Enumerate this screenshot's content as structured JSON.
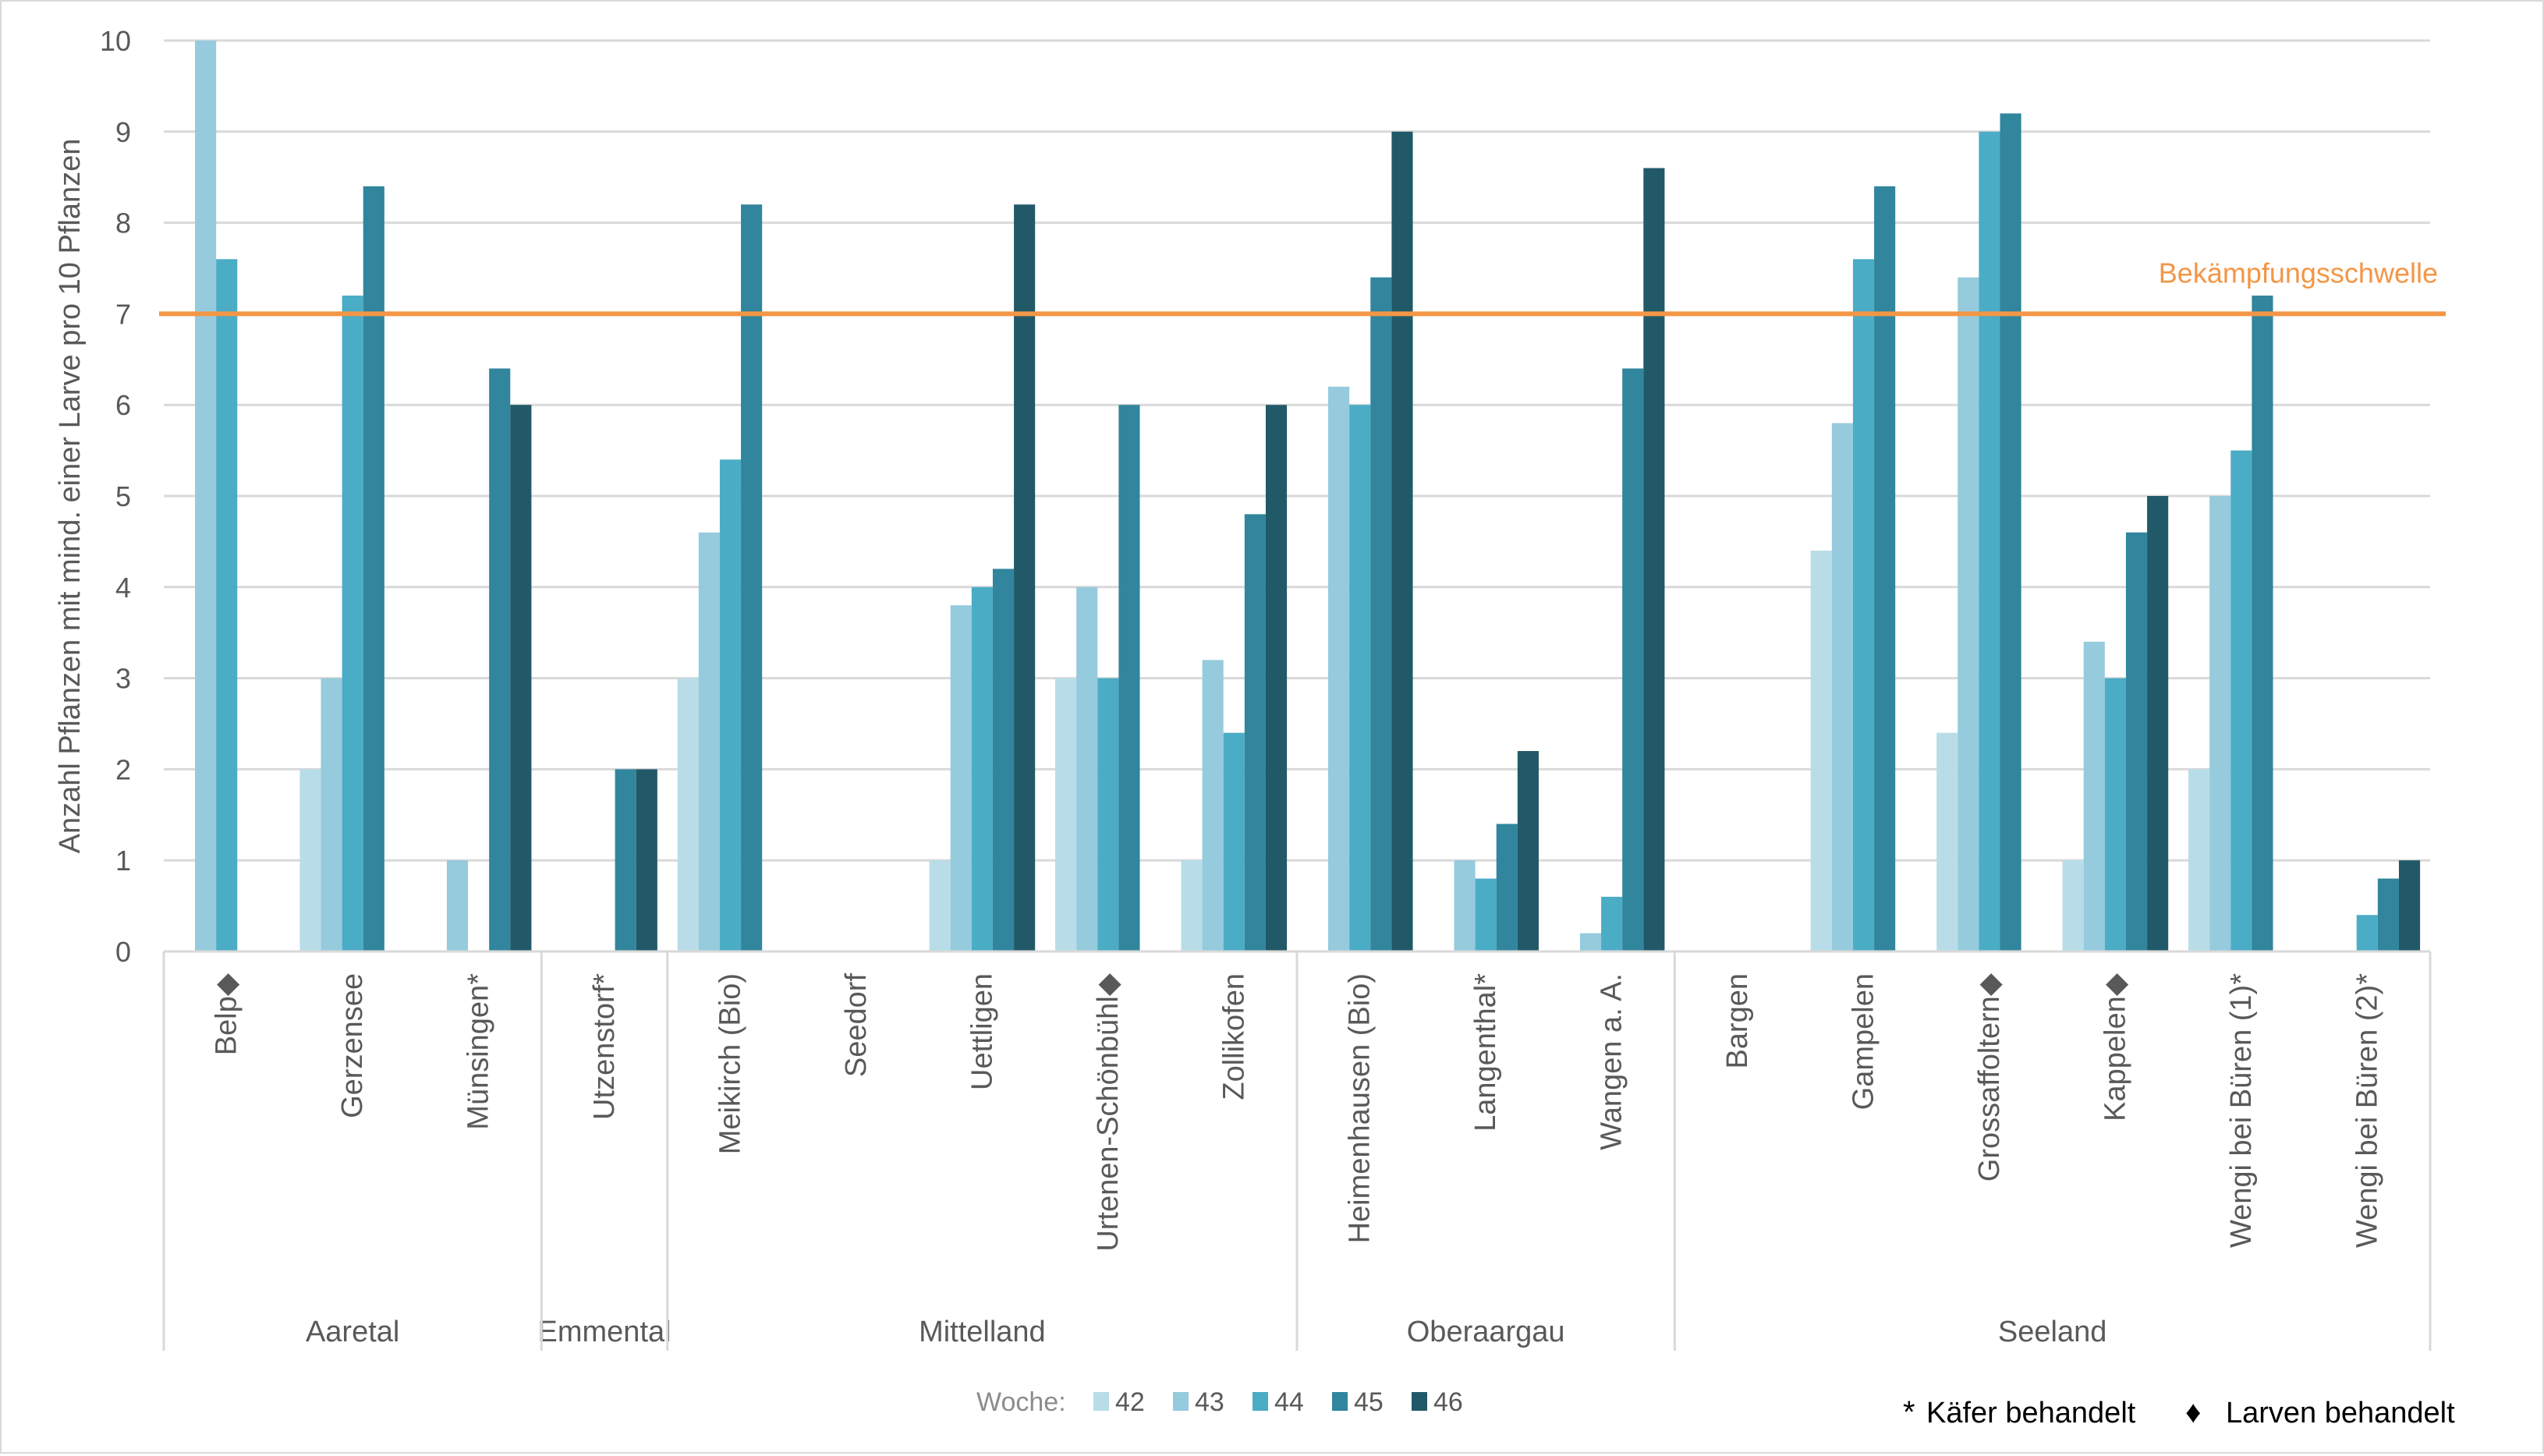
{
  "chart_data": {
    "type": "bar",
    "title": "",
    "ylabel": "Anzahl Pflanzen mit mind. einer Larve pro 10 Pflanzen",
    "xlabel": "",
    "ylim": [
      0,
      10
    ],
    "yticks": [
      0,
      1,
      2,
      3,
      4,
      5,
      6,
      7,
      8,
      9,
      10
    ],
    "grid": true,
    "legend": {
      "position": "bottom-center",
      "title": "Woche:"
    },
    "threshold": {
      "value": 7,
      "label": "Bekämpfungsschwelle",
      "color": "#f39646"
    },
    "regions": [
      {
        "name": "Aaretal",
        "sites": [
          "Belp",
          "Gerzensee",
          "Münsingen"
        ]
      },
      {
        "name": "Emmental",
        "sites": [
          "Utzenstorf"
        ]
      },
      {
        "name": "Mittelland",
        "sites": [
          "Meikirch (Bio)",
          "Seedorf",
          "Uettligen",
          "Urtenen-Schönbühl",
          "Zollikofen"
        ]
      },
      {
        "name": "Oberaargau",
        "sites": [
          "Heimenhausen (Bio)",
          "Langenthal",
          "Wangen a. A."
        ]
      },
      {
        "name": "Seeland",
        "sites": [
          "Bargen",
          "Gampelen",
          "Grossaffoltern",
          "Kappelen",
          "Wengi bei Büren (1)",
          "Wengi bei Büren (2)"
        ]
      }
    ],
    "categories": [
      "Belp",
      "Gerzensee",
      "Münsingen",
      "Utzenstorf",
      "Meikirch (Bio)",
      "Seedorf",
      "Uettligen",
      "Urtenen-Schönbühl",
      "Zollikofen",
      "Heimenhausen (Bio)",
      "Langenthal",
      "Wangen a. A.",
      "Bargen",
      "Gampelen",
      "Grossaffoltern",
      "Kappelen",
      "Wengi bei Büren (1)",
      "Wengi bei Büren (2)"
    ],
    "category_markers": [
      "◆",
      "",
      "*",
      "*",
      "",
      "",
      "",
      "◆",
      "",
      "",
      "*",
      "",
      "",
      "",
      "◆",
      "◆",
      "*",
      "*"
    ],
    "series": [
      {
        "name": "42",
        "color": "#b8dde8",
        "values": [
          null,
          2,
          null,
          null,
          3,
          null,
          1,
          3,
          1,
          null,
          null,
          null,
          null,
          4.4,
          2.4,
          1,
          2,
          null
        ]
      },
      {
        "name": "43",
        "color": "#95cbdc",
        "values": [
          10,
          3,
          1,
          null,
          4.6,
          null,
          3.8,
          4,
          3.2,
          6.2,
          1,
          0.2,
          null,
          5.8,
          7.4,
          3.4,
          5,
          null
        ]
      },
      {
        "name": "44",
        "color": "#4bacc6",
        "values": [
          7.6,
          7.2,
          null,
          null,
          5.4,
          null,
          4,
          3,
          2.4,
          6,
          0.8,
          0.6,
          null,
          7.6,
          9,
          3,
          5.5,
          0.4
        ]
      },
      {
        "name": "45",
        "color": "#31859c",
        "values": [
          null,
          8.4,
          6.4,
          2,
          8.2,
          null,
          4.2,
          6,
          4.8,
          7.4,
          1.4,
          6.4,
          null,
          8.4,
          9.2,
          4.6,
          7.2,
          0.8
        ]
      },
      {
        "name": "46",
        "color": "#215968",
        "values": [
          null,
          null,
          6,
          2,
          null,
          null,
          8.2,
          null,
          6,
          9,
          2.2,
          8.6,
          null,
          null,
          null,
          5,
          null,
          1
        ]
      }
    ]
  },
  "footnote": {
    "star": "*",
    "star_label": "Käfer behandelt",
    "diamond": "♦",
    "diamond_label": "Larven behandelt"
  }
}
